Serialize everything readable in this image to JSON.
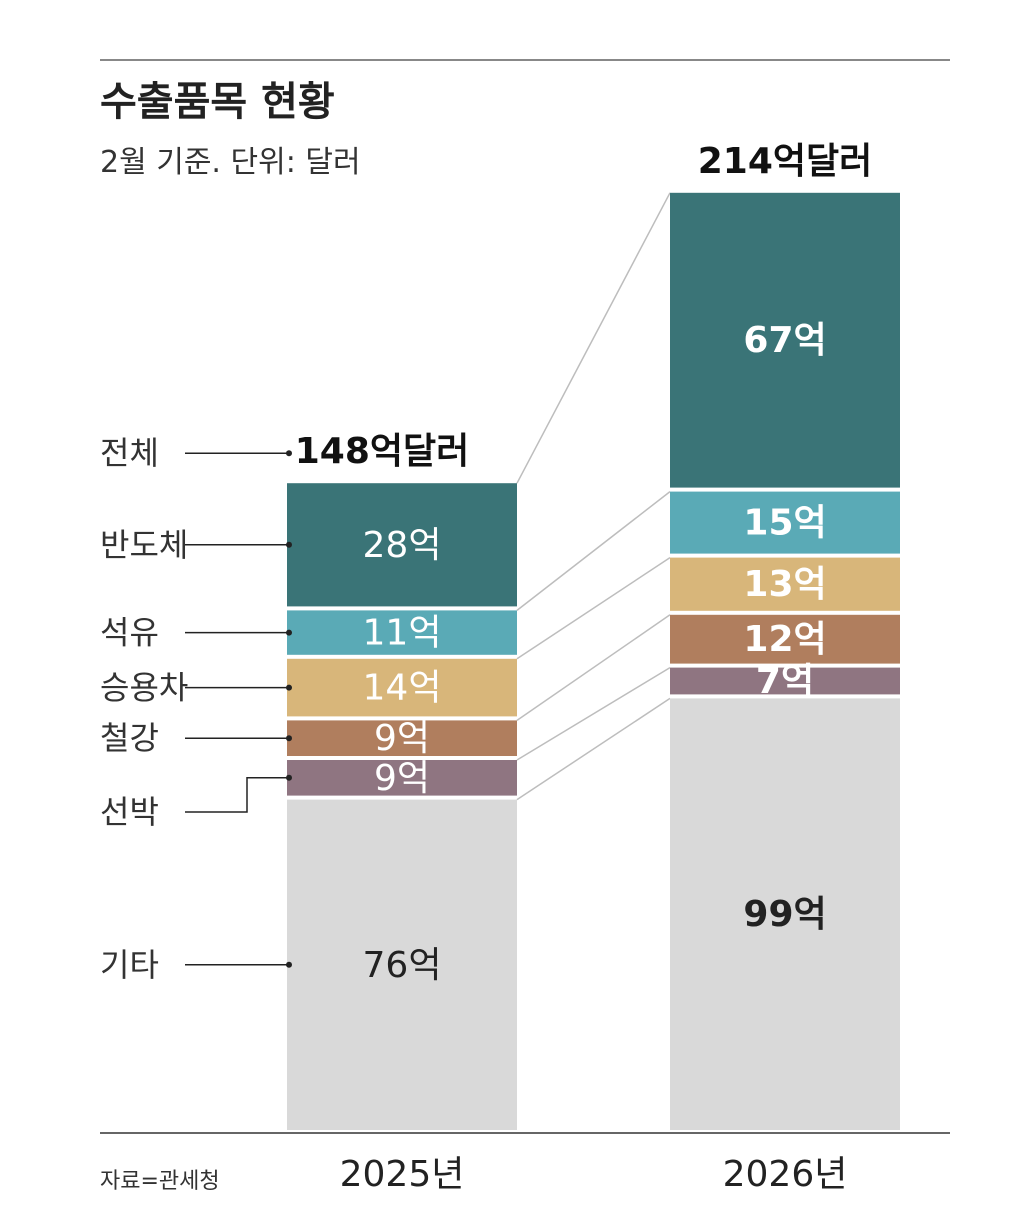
{
  "title": "수출품목 현황",
  "subtitle": "2월 기준. 단위: 달러",
  "source": "자료=관세청",
  "total_label": "전체",
  "chart_data": {
    "type": "bar",
    "stacked": true,
    "title": "수출품목 현황",
    "subtitle": "2월 기준. 단위: 달러",
    "categories": [
      "2025년",
      "2026년"
    ],
    "totals": [
      148,
      214
    ],
    "total_labels": [
      "148억달러",
      "214억달러"
    ],
    "unit": "억",
    "series": [
      {
        "name": "기타",
        "values": [
          76,
          99
        ],
        "labels": [
          "76억",
          "99억"
        ],
        "color": "#d9d9d9"
      },
      {
        "name": "선박",
        "values": [
          9,
          7
        ],
        "labels": [
          "9억",
          "7억"
        ],
        "color": "#8f7581"
      },
      {
        "name": "철강",
        "values": [
          9,
          12
        ],
        "labels": [
          "9억",
          "12억"
        ],
        "color": "#b07e5e"
      },
      {
        "name": "승용차",
        "values": [
          14,
          13
        ],
        "labels": [
          "14억",
          "13억"
        ],
        "color": "#d8b67a"
      },
      {
        "name": "석유",
        "values": [
          11,
          15
        ],
        "labels": [
          "11억",
          "15억"
        ],
        "color": "#5aaab6"
      },
      {
        "name": "반도체",
        "values": [
          28,
          67
        ],
        "labels": [
          "28억",
          "67억"
        ],
        "color": "#3a7477"
      }
    ],
    "label_colors": {
      "반도체": "#ffffff",
      "석유": "#ffffff",
      "승용차": "#ffffff",
      "철강": "#ffffff",
      "선박": "#ffffff",
      "기타": "#222222"
    }
  }
}
